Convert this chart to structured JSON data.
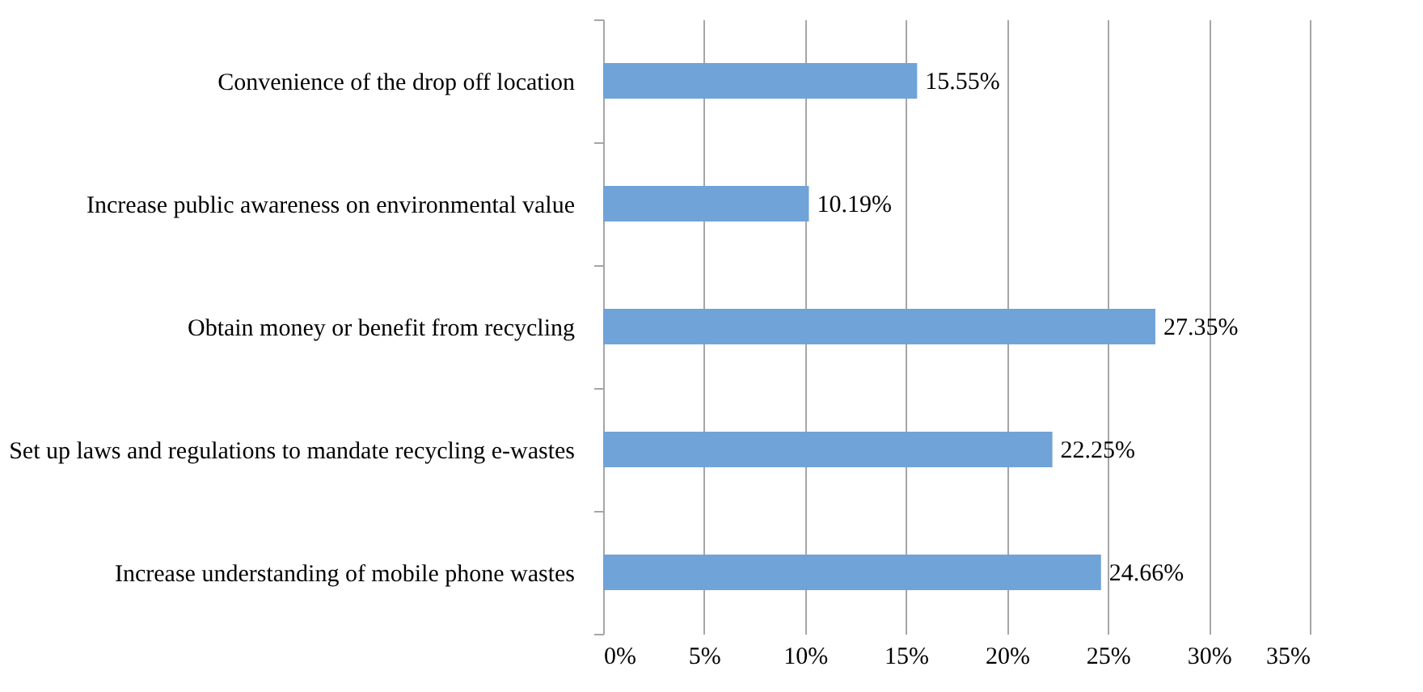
{
  "chart_data": {
    "type": "bar",
    "orientation": "horizontal",
    "categories": [
      "Convenience of the drop off location",
      "Increase public awareness on environmental value",
      "Obtain money or benefit from recycling",
      "Set up laws and regulations to mandate recycling e-wastes",
      "Increase understanding of mobile phone wastes"
    ],
    "values": [
      15.55,
      10.19,
      27.35,
      22.25,
      24.66
    ],
    "value_labels": [
      "15.55%",
      "10.19%",
      "27.35%",
      "22.25%",
      "24.66%"
    ],
    "color": "#70a3d8",
    "xlim": [
      0,
      35
    ],
    "xticks": [
      {
        "value": 0,
        "label": "0%"
      },
      {
        "value": 5,
        "label": "5%"
      },
      {
        "value": 10,
        "label": "10%"
      },
      {
        "value": 15,
        "label": "15%"
      },
      {
        "value": 20,
        "label": "20%"
      },
      {
        "value": 25,
        "label": "25%"
      },
      {
        "value": 30,
        "label": "30%"
      },
      {
        "value": 35,
        "label": "35%"
      }
    ],
    "grid": "x"
  }
}
